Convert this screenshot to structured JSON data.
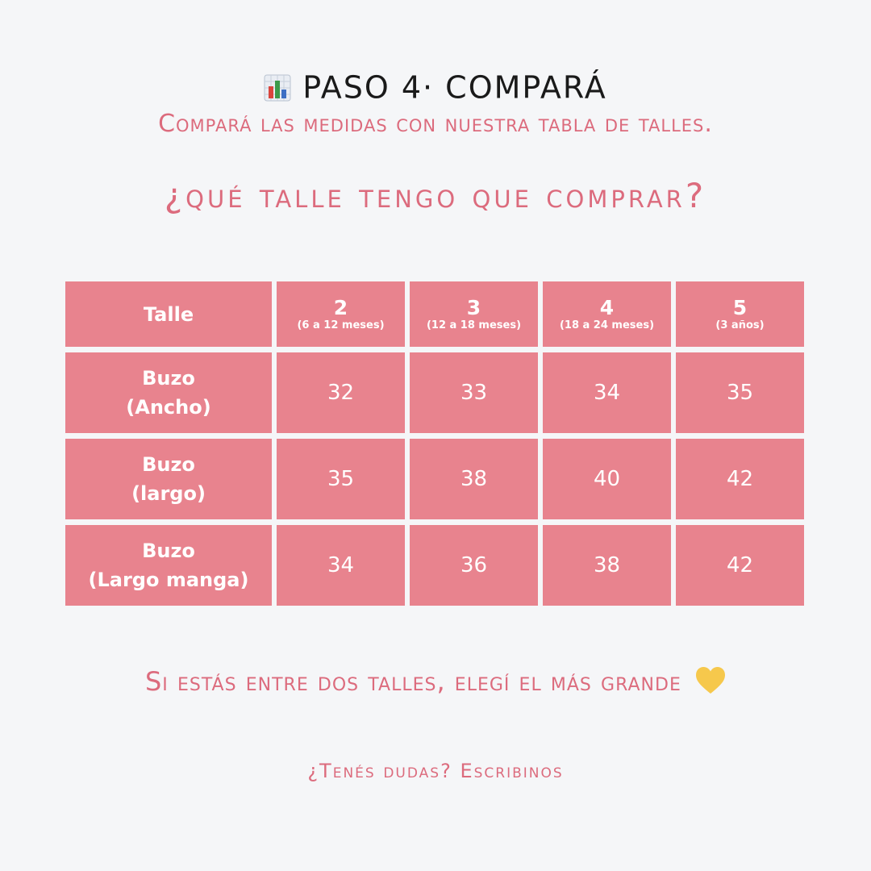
{
  "header": {
    "title": "PASO 4· COMPARÁ",
    "subtitle": "Compará las medidas con nuestra tabla de talles."
  },
  "question": "¿qué talle tengo que comprar?",
  "table": {
    "header": {
      "label": "Talle",
      "columns": [
        {
          "size": "2",
          "range": "(6 a 12 meses)"
        },
        {
          "size": "3",
          "range": "(12 a 18 meses)"
        },
        {
          "size": "4",
          "range": "(18 a 24 meses)"
        },
        {
          "size": "5",
          "range": "(3 años)"
        }
      ]
    },
    "rows": [
      {
        "label": [
          "Buzo",
          "(Ancho)"
        ],
        "values": [
          32,
          33,
          34,
          35
        ]
      },
      {
        "label": [
          "Buzo",
          "(largo)"
        ],
        "values": [
          35,
          38,
          40,
          42
        ]
      },
      {
        "label": [
          "Buzo",
          "(Largo manga)"
        ],
        "values": [
          34,
          36,
          38,
          42
        ]
      }
    ]
  },
  "note": "Si estás entre dos talles, elegí el más grande",
  "contact": "¿Tenés dudas? Escribinos"
}
